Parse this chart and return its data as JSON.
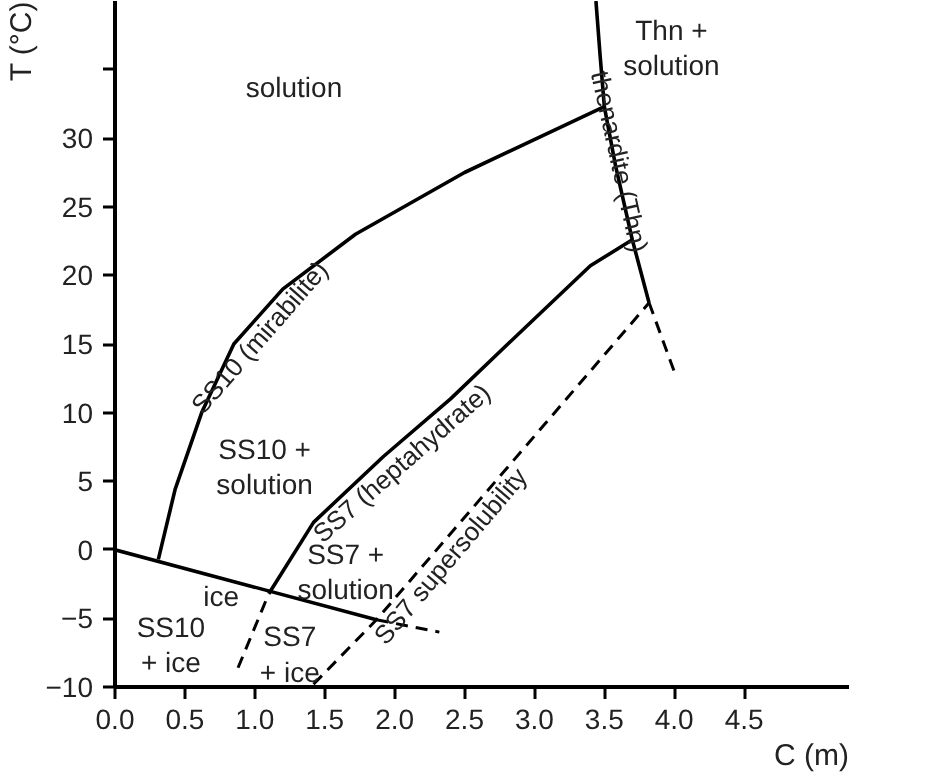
{
  "chart_data": {
    "type": "line",
    "xlabel": "C (m)",
    "ylabel": "T (°C)",
    "xlim": [
      0,
      5.25
    ],
    "ylim": [
      -10,
      40
    ],
    "xticks": [
      {
        "value": 0,
        "label": "0.0"
      },
      0.5,
      {
        "value": 1,
        "label": "1.0"
      },
      1.5,
      {
        "value": 2,
        "label": "2.0"
      },
      2.5,
      {
        "value": 3,
        "label": "3.0"
      },
      3.5,
      {
        "value": 4,
        "label": "4.0"
      },
      4.5
    ],
    "yticks": [
      -10,
      -5,
      0,
      5,
      10,
      15,
      20,
      25,
      30,
      {
        "value": 35,
        "label": null
      }
    ],
    "grid": false,
    "marker": "none",
    "series": [
      {
        "name": "SS10 (mirabilite)",
        "color": "#000000",
        "line_style": "solid",
        "x": [
          0.31,
          0.43,
          0.62,
          0.85,
          1.2,
          1.72,
          2.5,
          3.5
        ],
        "values": [
          -0.7,
          4.4,
          10,
          15,
          19,
          23,
          27.5,
          32.3
        ]
      },
      {
        "name": "thenardite (Thn)",
        "color": "#000000",
        "line_style": "solid",
        "x": [
          3.82,
          3.7,
          3.58,
          3.5,
          3.47,
          3.44
        ],
        "values": [
          18,
          22.6,
          28,
          32.3,
          36,
          40
        ]
      },
      {
        "name": "SS7 (heptahydrate)",
        "color": "#000000",
        "line_style": "solid",
        "x": [
          1.1,
          1.42,
          1.92,
          2.4,
          2.81,
          3.4,
          3.7
        ],
        "values": [
          -3.2,
          2.0,
          6.8,
          11,
          15,
          20.7,
          22.6
        ]
      },
      {
        "name": "SS7 supersolubility",
        "color": "#000000",
        "line_style": "dashed",
        "x": [
          1.42,
          1.87,
          3.82
        ],
        "values": [
          -9.8,
          -5.1,
          18
        ]
      },
      {
        "color": "#000000",
        "line_style": "solid",
        "x": [
          0,
          1.87
        ],
        "values": [
          0,
          -5.1
        ]
      },
      {
        "color": "#000000",
        "line_style": "dashed",
        "x": [
          1.87,
          2.32
        ],
        "values": [
          -5.1,
          -6.0
        ]
      },
      {
        "color": "#000000",
        "line_style": "dashed",
        "x": [
          0.88,
          1.1
        ],
        "values": [
          -8.6,
          -3.2
        ]
      },
      {
        "color": "#000000",
        "line_style": "dashed",
        "x": [
          3.82,
          4.0
        ],
        "values": [
          18,
          13
        ]
      }
    ],
    "annotations": [
      "solution",
      "Thn +\nsolution",
      "SS10 +\nsolution",
      "SS7 +\nsolution",
      "ice",
      "SS10\n+ ice",
      "SS7\n+ ice"
    ]
  }
}
